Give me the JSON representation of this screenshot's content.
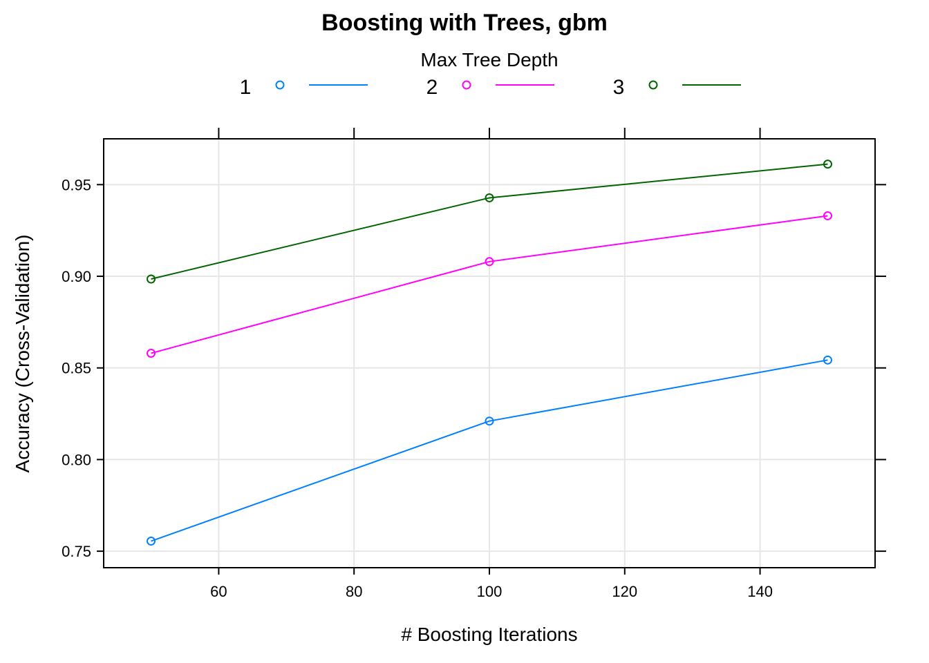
{
  "chart_data": {
    "type": "line",
    "title": "Boosting with Trees, gbm",
    "xlabel": "# Boosting Iterations",
    "ylabel": "Accuracy (Cross-Validation)",
    "legend": {
      "title": "Max Tree Depth",
      "placement": "top"
    },
    "x": [
      50,
      100,
      150
    ],
    "xlim": [
      43,
      157
    ],
    "ylim": [
      0.741,
      0.975
    ],
    "xticks": [
      60,
      80,
      100,
      120,
      140
    ],
    "yticks": [
      0.75,
      0.8,
      0.85,
      0.9,
      0.95
    ],
    "ytick_labels": [
      "0.75",
      "0.80",
      "0.85",
      "0.90",
      "0.95"
    ],
    "grid": true,
    "series": [
      {
        "name": "1",
        "color": "#0080ff",
        "values": [
          0.7555,
          0.821,
          0.8543
        ]
      },
      {
        "name": "2",
        "color": "#ff00ff",
        "values": [
          0.858,
          0.908,
          0.933
        ]
      },
      {
        "name": "3",
        "color": "#006400",
        "values": [
          0.8985,
          0.9428,
          0.9612
        ]
      }
    ]
  }
}
